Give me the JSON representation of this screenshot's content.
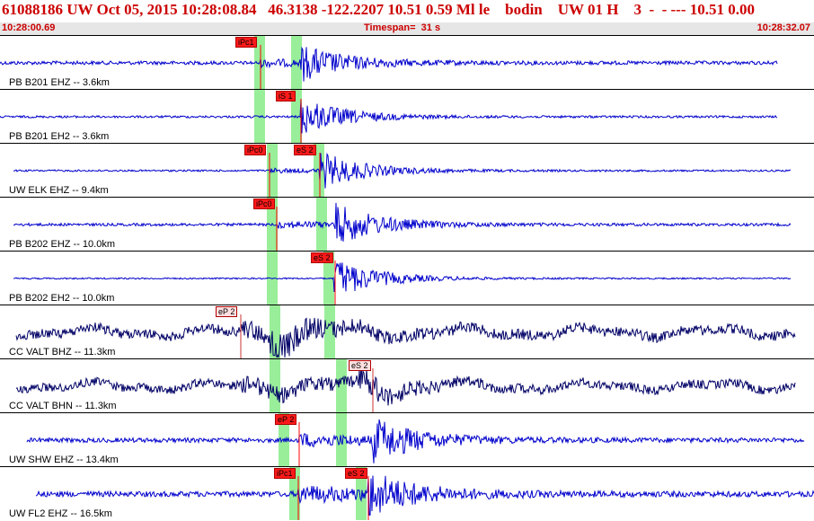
{
  "header": {
    "title": "61088186 UW Oct 05, 2015 10:28:08.84   46.3138 -122.2207 10.51 0.59 Ml le    bodin    UW 01 H    3  -  - --- 10.51 0.00",
    "start_time": "10:28:00.69",
    "timespan": "Timespan=  31 s",
    "end_time": "10:28:32.07"
  },
  "colors": {
    "title": "#cc0000",
    "trace_blue": "#0000cc",
    "trace_dark": "#000066",
    "window_green": "#99ee99",
    "pick_red": "#ff1a1a"
  },
  "traces": [
    {
      "label": "PB B201 EHZ -- 3.6km",
      "color": "#0000cc",
      "picks": [
        "iPc1"
      ],
      "style": "blue"
    },
    {
      "label": "PB B201 EH2 -- 3.6km",
      "color": "#0000cc",
      "picks": [
        "iS 1"
      ],
      "style": "blue"
    },
    {
      "label": "UW ELK EHZ -- 9.4km",
      "color": "#0000cc",
      "picks": [
        "iPc0",
        "eS 2"
      ],
      "style": "blue"
    },
    {
      "label": "PB B202 EHZ -- 10.0km",
      "color": "#0000cc",
      "picks": [
        "iPc0"
      ],
      "style": "blue"
    },
    {
      "label": "PB B202 EH2 -- 10.0km",
      "color": "#0000cc",
      "picks": [
        "eS 2"
      ],
      "style": "blue"
    },
    {
      "label": "CC VALT BHZ -- 11.3km",
      "color": "#000066",
      "picks": [
        "eP 2"
      ],
      "style": "dark"
    },
    {
      "label": "CC VALT BHN -- 11.3km",
      "color": "#000066",
      "picks": [
        "eS 2"
      ],
      "style": "dark"
    },
    {
      "label": "UW SHW EHZ -- 13.4km",
      "color": "#0000cc",
      "picks": [
        "eP 2"
      ],
      "style": "blue"
    },
    {
      "label": "UW FL2 EHZ -- 16.5km",
      "color": "#0000cc",
      "picks": [
        "iPc1",
        "eS 2"
      ],
      "style": "blue"
    }
  ]
}
